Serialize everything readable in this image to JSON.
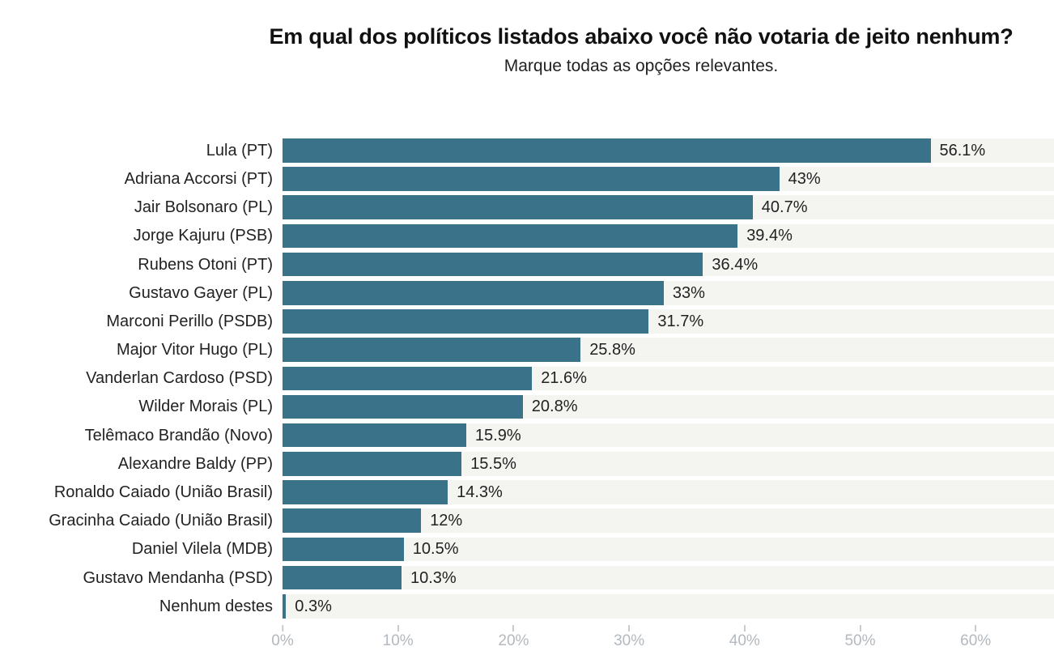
{
  "colors": {
    "bar": "#3a7289",
    "row_track": "#f4f4f0",
    "axis_tick": "#c8ccd0",
    "axis_label": "#b3b9be",
    "text": "#222222",
    "title": "#111111",
    "background": "#ffffff"
  },
  "chart_data": {
    "type": "bar",
    "orientation": "horizontal",
    "title": "Em qual dos políticos listados abaixo você não votaria de jeito nenhum?",
    "subtitle": "Marque todas as opções relevantes.",
    "categories": [
      "Lula (PT)",
      "Adriana Accorsi (PT)",
      "Jair Bolsonaro (PL)",
      "Jorge Kajuru (PSB)",
      "Rubens Otoni (PT)",
      "Gustavo Gayer (PL)",
      "Marconi Perillo (PSDB)",
      "Major Vitor Hugo (PL)",
      "Vanderlan Cardoso (PSD)",
      "Wilder Morais (PL)",
      "Telêmaco Brandão (Novo)",
      "Alexandre Baldy (PP)",
      "Ronaldo Caiado (União Brasil)",
      "Gracinha Caiado (União Brasil)",
      "Daniel Vilela (MDB)",
      "Gustavo Mendanha (PSD)",
      "Nenhum destes"
    ],
    "values": [
      56.1,
      43,
      40.7,
      39.4,
      36.4,
      33,
      31.7,
      25.8,
      21.6,
      20.8,
      15.9,
      15.5,
      14.3,
      12,
      10.5,
      10.3,
      0.3
    ],
    "value_labels": [
      "56.1%",
      "43%",
      "40.7%",
      "39.4%",
      "36.4%",
      "33%",
      "31.7%",
      "25.8%",
      "21.6%",
      "20.8%",
      "15.9%",
      "15.5%",
      "14.3%",
      "12%",
      "10.5%",
      "10.3%",
      "0.3%"
    ],
    "xlabel": "",
    "ylabel": "",
    "xlim": [
      0,
      66.8
    ],
    "x_ticks": [
      {
        "value": 0,
        "label": "0%"
      },
      {
        "value": 10,
        "label": "10%"
      },
      {
        "value": 20,
        "label": "20%"
      },
      {
        "value": 30,
        "label": "30%"
      },
      {
        "value": 40,
        "label": "40%"
      },
      {
        "value": 50,
        "label": "50%"
      },
      {
        "value": 60,
        "label": "60%"
      }
    ],
    "grid": false,
    "legend": "none"
  }
}
